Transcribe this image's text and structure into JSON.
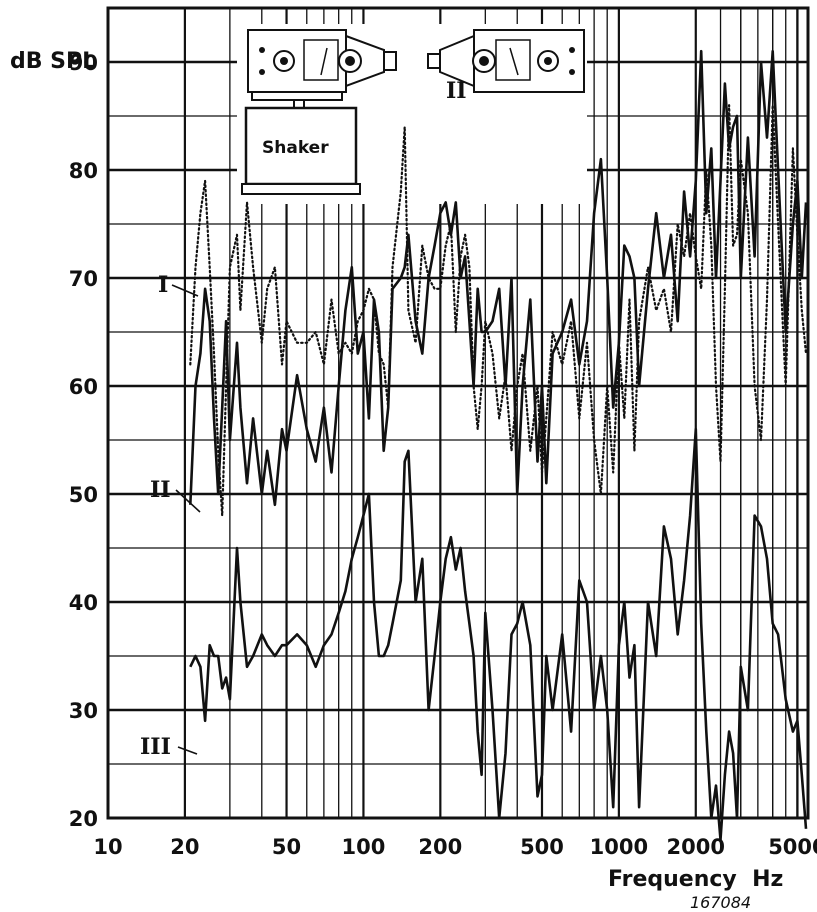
{
  "chart_data": {
    "type": "line",
    "title": "",
    "xlabel": "Frequency  Hz",
    "ylabel": "dB SPL",
    "xscale": "log",
    "xlim": [
      10,
      5500
    ],
    "ylim": [
      20,
      95
    ],
    "x_ticks": [
      10,
      20,
      50,
      100,
      200,
      500,
      1000,
      2000,
      5000
    ],
    "x_tick_labels": [
      "10",
      "20",
      "50",
      "100",
      "200",
      "500",
      "1000",
      "2000",
      "5000"
    ],
    "y_ticks": [
      20,
      30,
      40,
      50,
      60,
      70,
      80,
      90
    ],
    "y_tick_labels": [
      "20",
      "30",
      "40",
      "50",
      "60",
      "70",
      "80",
      "90"
    ],
    "grid": true,
    "figure_number": "167084",
    "inset": {
      "shaker_label": "Shaker",
      "meter_label": "II"
    },
    "series": [
      {
        "name": "I",
        "style": "dotted",
        "x": [
          21,
          22,
          23,
          24,
          25,
          26,
          27,
          28,
          29,
          30,
          32,
          33,
          35,
          37,
          40,
          42,
          45,
          48,
          50,
          55,
          60,
          65,
          70,
          75,
          80,
          85,
          90,
          95,
          100,
          105,
          110,
          115,
          120,
          125,
          130,
          140,
          145,
          150,
          160,
          170,
          180,
          190,
          200,
          210,
          220,
          230,
          240,
          250,
          260,
          270,
          280,
          290,
          300,
          320,
          340,
          360,
          380,
          400,
          420,
          450,
          480,
          500,
          520,
          550,
          600,
          650,
          700,
          750,
          800,
          850,
          900,
          950,
          1000,
          1050,
          1100,
          1150,
          1200,
          1300,
          1400,
          1500,
          1600,
          1700,
          1800,
          1900,
          2000,
          2100,
          2200,
          2300,
          2400,
          2500,
          2600,
          2700,
          2800,
          2900,
          3000,
          3200,
          3400,
          3600,
          3800,
          4000,
          4200,
          4500,
          4800,
          5000,
          5200,
          5400
        ],
        "y": [
          62,
          71,
          76,
          79,
          71,
          63,
          54,
          48,
          60,
          71,
          74,
          67,
          77,
          71,
          64,
          69,
          71,
          62,
          66,
          64,
          64,
          65,
          62,
          68,
          63,
          64,
          63,
          66,
          67,
          69,
          68,
          63,
          62,
          58,
          71,
          78,
          84,
          67,
          64,
          73,
          70,
          69,
          69,
          73,
          75,
          65,
          72,
          74,
          71,
          60,
          56,
          60,
          66,
          63,
          57,
          61,
          54,
          60,
          63,
          54,
          60,
          52,
          57,
          65,
          62,
          66,
          57,
          64,
          55,
          50,
          60,
          52,
          64,
          57,
          68,
          54,
          66,
          71,
          67,
          69,
          65,
          75,
          72,
          76,
          72,
          69,
          80,
          73,
          60,
          53,
          69,
          86,
          73,
          74,
          81,
          76,
          60,
          55,
          68,
          86,
          75,
          60,
          82,
          74,
          67,
          63
        ]
      },
      {
        "name": "II",
        "style": "solid",
        "x": [
          21,
          22,
          23,
          24,
          25,
          26,
          27,
          28,
          29,
          30,
          32,
          33,
          35,
          37,
          40,
          42,
          45,
          48,
          50,
          55,
          60,
          65,
          70,
          75,
          80,
          85,
          90,
          95,
          100,
          105,
          110,
          115,
          120,
          125,
          130,
          140,
          145,
          150,
          160,
          170,
          180,
          190,
          200,
          210,
          220,
          230,
          240,
          250,
          260,
          270,
          280,
          290,
          300,
          320,
          340,
          360,
          380,
          400,
          420,
          450,
          480,
          500,
          520,
          550,
          600,
          650,
          700,
          750,
          800,
          850,
          900,
          950,
          1000,
          1050,
          1100,
          1150,
          1200,
          1300,
          1400,
          1500,
          1600,
          1700,
          1800,
          1900,
          2000,
          2100,
          2200,
          2300,
          2400,
          2500,
          2600,
          2700,
          2800,
          2900,
          3000,
          3200,
          3400,
          3600,
          3800,
          4000,
          4200,
          4500,
          4800,
          5000,
          5200,
          5400
        ],
        "y": [
          49,
          60,
          63,
          69,
          66,
          57,
          50,
          58,
          66,
          55,
          64,
          58,
          51,
          57,
          50,
          54,
          49,
          56,
          54,
          61,
          56,
          53,
          58,
          52,
          60,
          67,
          71,
          63,
          65,
          57,
          68,
          65,
          54,
          58,
          69,
          70,
          71,
          74,
          66,
          63,
          70,
          73,
          76,
          77,
          74,
          77,
          70,
          72,
          66,
          60,
          69,
          65,
          65,
          66,
          69,
          60,
          70,
          50,
          60,
          68,
          53,
          60,
          51,
          63,
          65,
          68,
          62,
          66,
          76,
          81,
          70,
          58,
          64,
          73,
          72,
          70,
          60,
          69,
          76,
          70,
          74,
          66,
          78,
          72,
          79,
          91,
          76,
          82,
          70,
          79,
          88,
          82,
          84,
          85,
          70,
          83,
          72,
          90,
          83,
          91,
          80,
          65,
          75,
          79,
          70,
          77
        ]
      },
      {
        "name": "III",
        "style": "solid",
        "x": [
          21,
          22,
          23,
          24,
          25,
          26,
          27,
          28,
          29,
          30,
          32,
          33,
          35,
          37,
          40,
          42,
          45,
          48,
          50,
          55,
          60,
          65,
          70,
          75,
          80,
          85,
          90,
          95,
          100,
          105,
          110,
          115,
          120,
          125,
          130,
          140,
          145,
          150,
          160,
          170,
          180,
          190,
          200,
          210,
          220,
          230,
          240,
          250,
          260,
          270,
          280,
          290,
          300,
          320,
          340,
          360,
          380,
          400,
          420,
          450,
          480,
          500,
          520,
          550,
          600,
          650,
          700,
          750,
          800,
          850,
          900,
          950,
          1000,
          1050,
          1100,
          1150,
          1200,
          1300,
          1400,
          1500,
          1600,
          1700,
          1800,
          1900,
          2000,
          2100,
          2200,
          2300,
          2400,
          2500,
          2600,
          2700,
          2800,
          2900,
          3000,
          3200,
          3400,
          3600,
          3800,
          4000,
          4200,
          4500,
          4800,
          5000,
          5200,
          5400
        ],
        "y": [
          34,
          35,
          34,
          29,
          36,
          35,
          35,
          32,
          33,
          31,
          45,
          40,
          34,
          35,
          37,
          36,
          35,
          36,
          36,
          37,
          36,
          34,
          36,
          37,
          39,
          41,
          44,
          46,
          48,
          50,
          40,
          35,
          35,
          36,
          38,
          42,
          53,
          54,
          40,
          44,
          30,
          35,
          40,
          44,
          46,
          43,
          45,
          41,
          38,
          35,
          28,
          24,
          39,
          30,
          20,
          26,
          37,
          38,
          40,
          36,
          22,
          24,
          35,
          30,
          37,
          28,
          42,
          40,
          30,
          35,
          30,
          21,
          36,
          40,
          33,
          36,
          21,
          40,
          35,
          47,
          44,
          37,
          42,
          48,
          56,
          38,
          28,
          20,
          23,
          18,
          24,
          28,
          26,
          20,
          34,
          30,
          48,
          47,
          44,
          38,
          37,
          31,
          28,
          29,
          24,
          19
        ]
      }
    ]
  }
}
